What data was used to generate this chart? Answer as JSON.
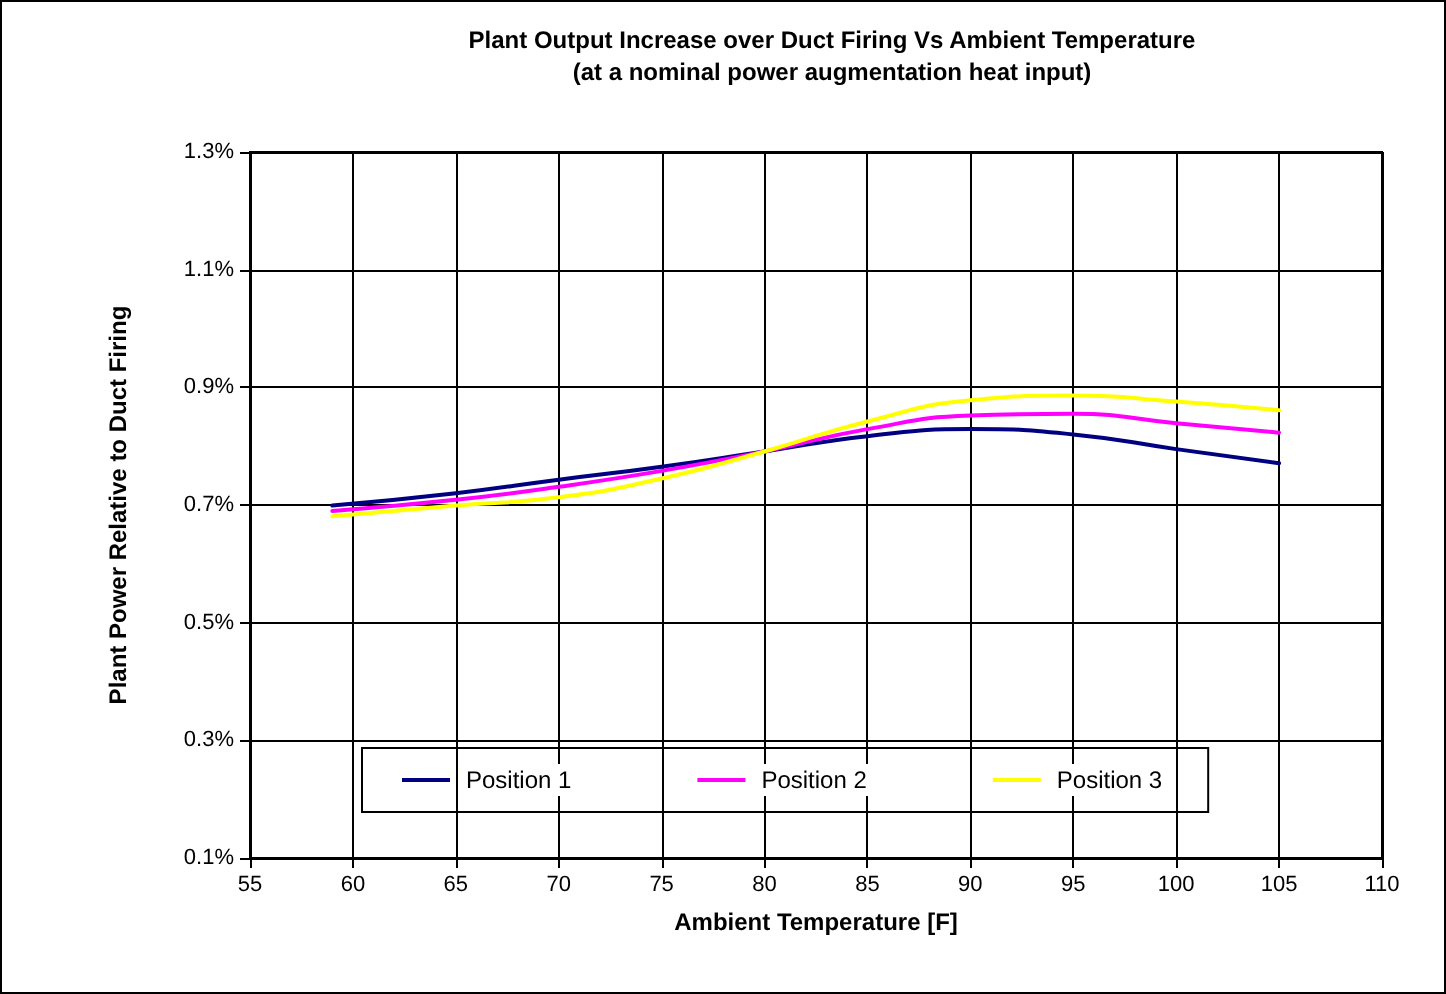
{
  "chart_data": {
    "type": "line",
    "title": "Plant Output Increase over Duct Firing Vs Ambient Temperature",
    "subtitle": "(at a nominal power augmentation heat input)",
    "xlabel": "Ambient Temperature [F]",
    "ylabel": "Plant Power Relative to Duct Firing",
    "x": [
      59,
      65,
      70,
      75,
      80,
      85,
      90,
      95,
      100,
      105
    ],
    "series": [
      {
        "name": "Position 1",
        "color": "#000080",
        "values": [
          0.699,
          0.72,
          0.743,
          0.765,
          0.791,
          0.817,
          0.829,
          0.82,
          0.795,
          0.771
        ]
      },
      {
        "name": "Position 2",
        "color": "#ff00ff",
        "values": [
          0.69,
          0.709,
          0.731,
          0.758,
          0.791,
          0.829,
          0.852,
          0.855,
          0.839,
          0.823
        ]
      },
      {
        "name": "Position 3",
        "color": "#ffff00",
        "values": [
          0.681,
          0.699,
          0.713,
          0.745,
          0.791,
          0.842,
          0.878,
          0.886,
          0.876,
          0.861
        ]
      }
    ],
    "xlim": [
      55,
      110
    ],
    "xticks": [
      55,
      60,
      65,
      70,
      75,
      80,
      85,
      90,
      95,
      100,
      105,
      110
    ],
    "ylim": [
      0.1,
      1.3
    ],
    "yticks": [
      {
        "value": 0.1,
        "label": "0.1%"
      },
      {
        "value": 0.3,
        "label": "0.3%"
      },
      {
        "value": 0.5,
        "label": "0.5%"
      },
      {
        "value": 0.7,
        "label": "0.7%"
      },
      {
        "value": 0.9,
        "label": "0.9%"
      },
      {
        "value": 1.1,
        "label": "1.1%"
      },
      {
        "value": 1.3,
        "label": "1.3%"
      }
    ],
    "grid": true,
    "legend": "bottom",
    "marker": "none",
    "line_style": "solid"
  }
}
